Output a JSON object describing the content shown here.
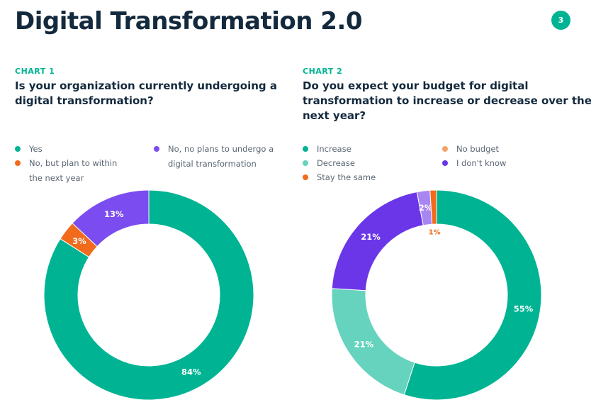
{
  "page": {
    "title": "Digital Transformation 2.0",
    "number": "3"
  },
  "colors": {
    "teal": "#00b493",
    "light_teal": "#66d3be",
    "purple": "#7b4cf0",
    "dark_purple": "#6b36e8",
    "light_purple": "#a886f2",
    "orange": "#f26b1d",
    "light_orange": "#f5a267"
  },
  "chart_data": [
    {
      "type": "pie",
      "label": "CHART 1",
      "title": "Is your organization currently undergoing a digital transformation?",
      "slices": [
        {
          "name": "Yes",
          "value": 84,
          "label": "84%",
          "color": "#00b493"
        },
        {
          "name": "No, but plan to within the next year",
          "value": 3,
          "label": "3%",
          "color": "#f26b1d"
        },
        {
          "name": "No, no plans to undergo a digital transformation",
          "value": 13,
          "label": "13%",
          "color": "#7b4cf0"
        }
      ],
      "legend": [
        {
          "name": "Yes",
          "color": "#00b493"
        },
        {
          "name": "No, but plan to within the next year",
          "color": "#f26b1d"
        },
        {
          "name": "No, no plans to undergo a digital transformation",
          "color": "#7b4cf0"
        }
      ]
    },
    {
      "type": "pie",
      "label": "CHART 2",
      "title": "Do you expect your budget for digital transformation to increase or decrease over the next year?",
      "slices": [
        {
          "name": "Increase",
          "value": 55,
          "label": "55%",
          "color": "#00b493"
        },
        {
          "name": "Decrease",
          "value": 21,
          "label": "21%",
          "color": "#66d3be"
        },
        {
          "name": "I don't know",
          "value": 21,
          "label": "21%",
          "color": "#6b36e8"
        },
        {
          "name": "No budget",
          "value": 2,
          "label": "2%",
          "color": "#a886f2"
        },
        {
          "name": "Stay the same",
          "value": 1,
          "label": "1%",
          "color": "#f26b1d"
        }
      ],
      "legend": [
        {
          "name": "Increase",
          "color": "#00b493"
        },
        {
          "name": "Decrease",
          "color": "#66d3be"
        },
        {
          "name": "Stay the same",
          "color": "#f26b1d"
        },
        {
          "name": "No budget",
          "color": "#f5a267"
        },
        {
          "name": "I don't know",
          "color": "#6b36e8"
        }
      ]
    }
  ]
}
